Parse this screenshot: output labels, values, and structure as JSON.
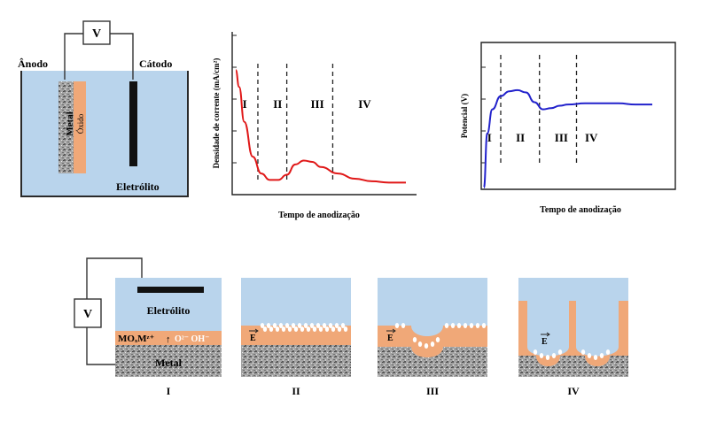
{
  "cell": {
    "voltmeter": "V",
    "anode_label": "Ânodo",
    "cathode_label": "Cátodo",
    "metal_label": "Metal",
    "oxide_label": "Óxido",
    "electrolyte_label": "Eletrólito"
  },
  "colors": {
    "electrolyte": "#b9d4ec",
    "oxide": "#f0a878",
    "metal": "#9a9a9a",
    "current_curve": "#e01818",
    "potential_curve": "#2222cc"
  },
  "chart_data": [
    {
      "type": "line",
      "title": "",
      "ylabel": "Densidade de corrente (mA/cm²)",
      "xlabel": "Tempo de anodização",
      "regions": [
        "I",
        "II",
        "III",
        "IV"
      ],
      "series": [
        {
          "x": [
            0,
            0.02,
            0.05,
            0.1,
            0.15,
            0.2,
            0.25,
            0.3,
            0.35,
            0.4,
            0.45,
            0.5,
            0.6,
            0.7,
            0.8,
            0.9,
            1.0
          ],
          "values": [
            0.95,
            0.82,
            0.55,
            0.28,
            0.15,
            0.1,
            0.1,
            0.14,
            0.22,
            0.25,
            0.24,
            0.2,
            0.15,
            0.11,
            0.09,
            0.08,
            0.08
          ]
        }
      ]
    },
    {
      "type": "line",
      "title": "",
      "ylabel": "Potencial (V)",
      "xlabel": "Tempo de anodização",
      "regions": [
        "I",
        "II",
        "III",
        "IV"
      ],
      "series": [
        {
          "x": [
            0,
            0.02,
            0.05,
            0.1,
            0.15,
            0.2,
            0.25,
            0.3,
            0.35,
            0.4,
            0.45,
            0.5,
            0.6,
            0.7,
            0.8,
            0.9,
            1.0
          ],
          "values": [
            0.0,
            0.45,
            0.65,
            0.76,
            0.8,
            0.81,
            0.79,
            0.71,
            0.65,
            0.66,
            0.68,
            0.69,
            0.7,
            0.7,
            0.7,
            0.69,
            0.69
          ]
        }
      ]
    }
  ],
  "bottom": {
    "voltmeter": "V",
    "electrolyte_label": "Eletrólito",
    "metal_label": "Metal",
    "ion_label": "MOₓMᶻ⁺",
    "anion_label": "O²⁻ OH⁻",
    "field_symbol": "E",
    "stages": [
      "I",
      "II",
      "III",
      "IV"
    ]
  }
}
